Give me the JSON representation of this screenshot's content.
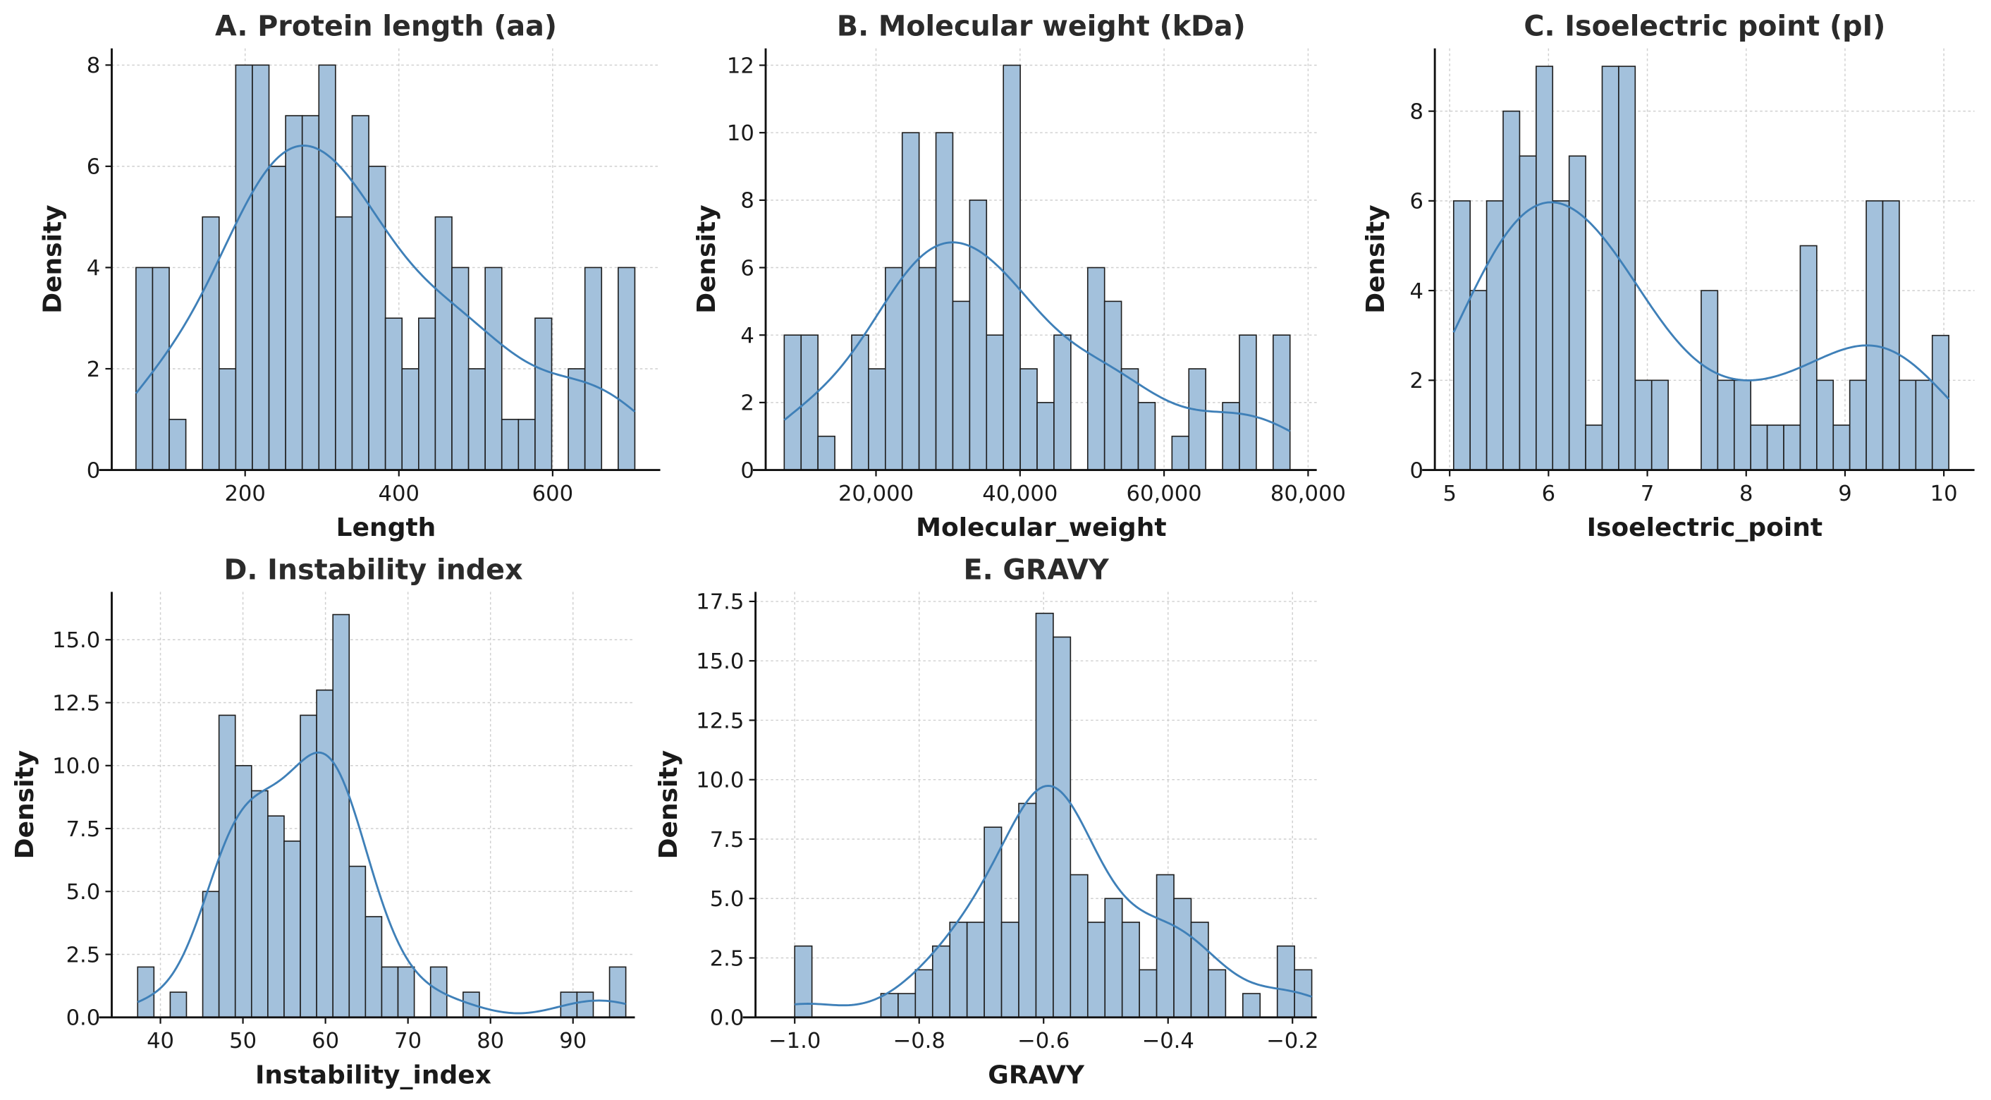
{
  "colors": {
    "bar_fill": "#a3c1dc",
    "bar_edge": "#1e1e1e",
    "kde": "#3f80b8"
  },
  "chart_data": [
    {
      "type": "bar",
      "subtype": "histogram+kde",
      "title": "A. Protein length (aa)",
      "xlabel": "Length",
      "ylabel": "Density",
      "bin_start": 58,
      "bin_width": 21.63,
      "counts": [
        4,
        4,
        1,
        0,
        5,
        2,
        8,
        8,
        6,
        7,
        7,
        8,
        5,
        7,
        6,
        3,
        2,
        3,
        5,
        4,
        2,
        4,
        1,
        1,
        3,
        0,
        2,
        4,
        0,
        4
      ],
      "xlim": [
        26.5,
        740
      ],
      "ylim": [
        0,
        8.33
      ],
      "xticks": [
        200,
        400,
        600
      ],
      "xtick_labels": [
        "200",
        "400",
        "600"
      ],
      "yticks": [
        0,
        2,
        4,
        6,
        8
      ],
      "ytick_labels": [
        "0",
        "2",
        "4",
        "6",
        "8"
      ],
      "grid": true
    },
    {
      "type": "bar",
      "subtype": "histogram+kde",
      "title": "B. Molecular weight (kDa)",
      "xlabel": "Molecular_weight",
      "ylabel": "Density",
      "bin_start": 7256,
      "bin_width": 2341,
      "counts": [
        4,
        4,
        1,
        0,
        4,
        3,
        6,
        10,
        6,
        10,
        5,
        8,
        4,
        12,
        3,
        2,
        4,
        0,
        6,
        5,
        3,
        2,
        0,
        1,
        3,
        0,
        2,
        4,
        0,
        4
      ],
      "xlim": [
        4680,
        81200
      ],
      "ylim": [
        0,
        12.5
      ],
      "xticks": [
        20000,
        40000,
        60000,
        80000
      ],
      "xtick_labels": [
        "20,000",
        "40,000",
        "60,000",
        "80,000"
      ],
      "yticks": [
        0,
        2,
        4,
        6,
        8,
        10,
        12
      ],
      "ytick_labels": [
        "0",
        "2",
        "4",
        "6",
        "8",
        "10",
        "12"
      ],
      "grid": true
    },
    {
      "type": "bar",
      "subtype": "histogram+kde",
      "title": "C. Isoelectric point (pI)",
      "xlabel": "Isoelectric_point",
      "ylabel": "Density",
      "bin_start": 5.04,
      "bin_width": 0.167,
      "counts": [
        6,
        4,
        6,
        8,
        7,
        9,
        6,
        7,
        1,
        9,
        9,
        2,
        2,
        0,
        0,
        4,
        2,
        2,
        1,
        1,
        1,
        5,
        2,
        1,
        2,
        6,
        6,
        2,
        2,
        3
      ],
      "xlim": [
        4.85,
        10.31
      ],
      "ylim": [
        0,
        9.4
      ],
      "xticks": [
        5,
        6,
        7,
        8,
        9,
        10
      ],
      "xtick_labels": [
        "5",
        "6",
        "7",
        "8",
        "9",
        "10"
      ],
      "yticks": [
        0,
        2,
        4,
        6,
        8
      ],
      "ytick_labels": [
        "0",
        "2",
        "4",
        "6",
        "8"
      ],
      "grid": true
    },
    {
      "type": "bar",
      "subtype": "histogram+kde",
      "title": "D. Instability index",
      "xlabel": "Instability_index",
      "ylabel": "Density",
      "bin_start": 37.24,
      "bin_width": 1.972,
      "counts": [
        2,
        0,
        1,
        0,
        5,
        12,
        10,
        9,
        8,
        7,
        12,
        13,
        16,
        6,
        4,
        2,
        2,
        0,
        2,
        0,
        1,
        0,
        0,
        0,
        0,
        0,
        1,
        1,
        0,
        2
      ],
      "xlim": [
        34.1,
        97.5
      ],
      "ylim": [
        0,
        16.9
      ],
      "xticks": [
        40,
        50,
        60,
        70,
        80,
        90
      ],
      "xtick_labels": [
        "40",
        "50",
        "60",
        "70",
        "80",
        "90"
      ],
      "yticks": [
        0,
        2.5,
        5,
        7.5,
        10,
        12.5,
        15
      ],
      "ytick_labels": [
        "0.0",
        "2.5",
        "5.0",
        "7.5",
        "10.0",
        "12.5",
        "15.0"
      ],
      "grid": true
    },
    {
      "type": "bar",
      "subtype": "histogram+kde",
      "title": "E. GRAVY",
      "xlabel": "GRAVY",
      "ylabel": "Density",
      "bin_start": -1.0,
      "bin_width": 0.0277,
      "counts": [
        3,
        0,
        0,
        0,
        0,
        1,
        1,
        2,
        3,
        4,
        4,
        8,
        4,
        9,
        17,
        16,
        6,
        4,
        5,
        4,
        2,
        6,
        5,
        4,
        2,
        0,
        1,
        0,
        3,
        2
      ],
      "xlim": [
        -1.063,
        -0.161
      ],
      "ylim": [
        0,
        17.9
      ],
      "xticks": [
        -1.0,
        -0.8,
        -0.6,
        -0.4,
        -0.2
      ],
      "xtick_labels": [
        "−1.0",
        "−0.8",
        "−0.6",
        "−0.4",
        "−0.2"
      ],
      "yticks": [
        0,
        2.5,
        5,
        7.5,
        10,
        12.5,
        15,
        17.5
      ],
      "ytick_labels": [
        "0.0",
        "2.5",
        "5.0",
        "7.5",
        "10.0",
        "12.5",
        "15.0",
        "17.5"
      ],
      "grid": true
    }
  ]
}
